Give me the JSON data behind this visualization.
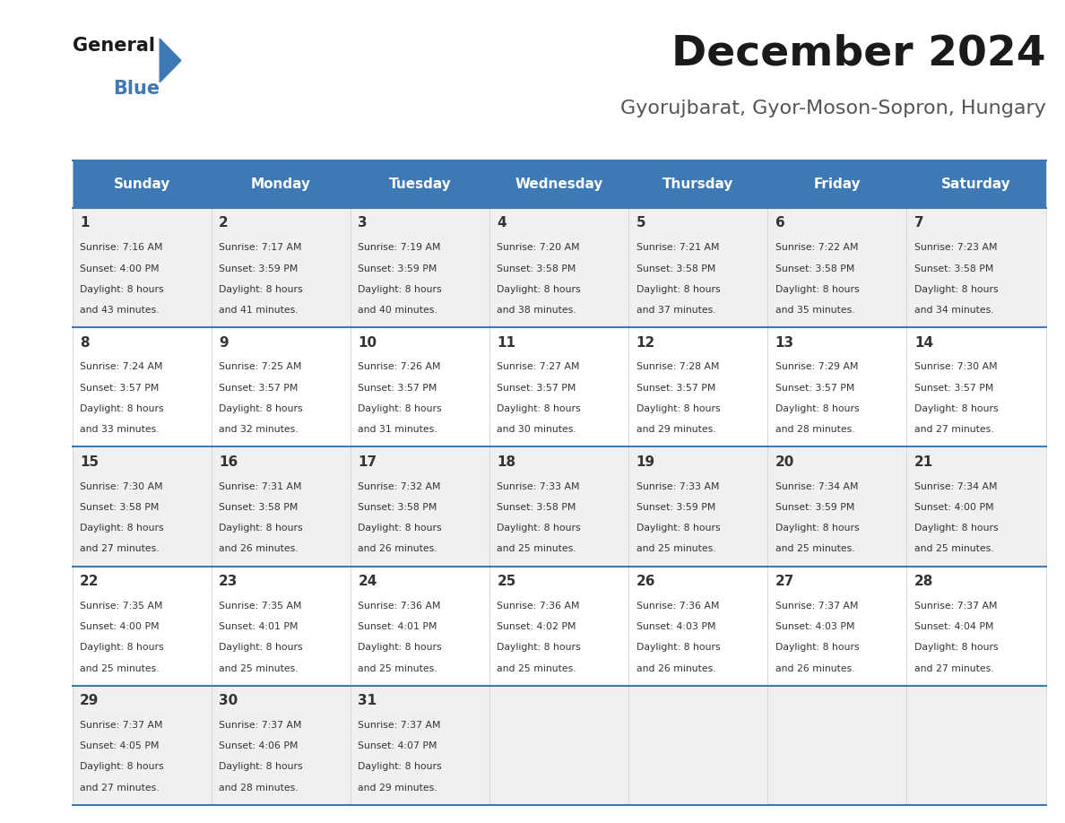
{
  "title": "December 2024",
  "subtitle": "Gyorujbarat, Gyor-Moson-Sopron, Hungary",
  "header_color": "#3d7ab5",
  "header_text_color": "#ffffff",
  "day_names": [
    "Sunday",
    "Monday",
    "Tuesday",
    "Wednesday",
    "Thursday",
    "Friday",
    "Saturday"
  ],
  "bg_color": "#ffffff",
  "cell_bg_even": "#f0f0f0",
  "cell_bg_odd": "#ffffff",
  "row_line_color": "#3d7ab5",
  "days": [
    {
      "day": 1,
      "col": 0,
      "row": 0,
      "sunrise": "7:16 AM",
      "sunset": "4:00 PM",
      "daylight": "8 hours and 43 minutes."
    },
    {
      "day": 2,
      "col": 1,
      "row": 0,
      "sunrise": "7:17 AM",
      "sunset": "3:59 PM",
      "daylight": "8 hours and 41 minutes."
    },
    {
      "day": 3,
      "col": 2,
      "row": 0,
      "sunrise": "7:19 AM",
      "sunset": "3:59 PM",
      "daylight": "8 hours and 40 minutes."
    },
    {
      "day": 4,
      "col": 3,
      "row": 0,
      "sunrise": "7:20 AM",
      "sunset": "3:58 PM",
      "daylight": "8 hours and 38 minutes."
    },
    {
      "day": 5,
      "col": 4,
      "row": 0,
      "sunrise": "7:21 AM",
      "sunset": "3:58 PM",
      "daylight": "8 hours and 37 minutes."
    },
    {
      "day": 6,
      "col": 5,
      "row": 0,
      "sunrise": "7:22 AM",
      "sunset": "3:58 PM",
      "daylight": "8 hours and 35 minutes."
    },
    {
      "day": 7,
      "col": 6,
      "row": 0,
      "sunrise": "7:23 AM",
      "sunset": "3:58 PM",
      "daylight": "8 hours and 34 minutes."
    },
    {
      "day": 8,
      "col": 0,
      "row": 1,
      "sunrise": "7:24 AM",
      "sunset": "3:57 PM",
      "daylight": "8 hours and 33 minutes."
    },
    {
      "day": 9,
      "col": 1,
      "row": 1,
      "sunrise": "7:25 AM",
      "sunset": "3:57 PM",
      "daylight": "8 hours and 32 minutes."
    },
    {
      "day": 10,
      "col": 2,
      "row": 1,
      "sunrise": "7:26 AM",
      "sunset": "3:57 PM",
      "daylight": "8 hours and 31 minutes."
    },
    {
      "day": 11,
      "col": 3,
      "row": 1,
      "sunrise": "7:27 AM",
      "sunset": "3:57 PM",
      "daylight": "8 hours and 30 minutes."
    },
    {
      "day": 12,
      "col": 4,
      "row": 1,
      "sunrise": "7:28 AM",
      "sunset": "3:57 PM",
      "daylight": "8 hours and 29 minutes."
    },
    {
      "day": 13,
      "col": 5,
      "row": 1,
      "sunrise": "7:29 AM",
      "sunset": "3:57 PM",
      "daylight": "8 hours and 28 minutes."
    },
    {
      "day": 14,
      "col": 6,
      "row": 1,
      "sunrise": "7:30 AM",
      "sunset": "3:57 PM",
      "daylight": "8 hours and 27 minutes."
    },
    {
      "day": 15,
      "col": 0,
      "row": 2,
      "sunrise": "7:30 AM",
      "sunset": "3:58 PM",
      "daylight": "8 hours and 27 minutes."
    },
    {
      "day": 16,
      "col": 1,
      "row": 2,
      "sunrise": "7:31 AM",
      "sunset": "3:58 PM",
      "daylight": "8 hours and 26 minutes."
    },
    {
      "day": 17,
      "col": 2,
      "row": 2,
      "sunrise": "7:32 AM",
      "sunset": "3:58 PM",
      "daylight": "8 hours and 26 minutes."
    },
    {
      "day": 18,
      "col": 3,
      "row": 2,
      "sunrise": "7:33 AM",
      "sunset": "3:58 PM",
      "daylight": "8 hours and 25 minutes."
    },
    {
      "day": 19,
      "col": 4,
      "row": 2,
      "sunrise": "7:33 AM",
      "sunset": "3:59 PM",
      "daylight": "8 hours and 25 minutes."
    },
    {
      "day": 20,
      "col": 5,
      "row": 2,
      "sunrise": "7:34 AM",
      "sunset": "3:59 PM",
      "daylight": "8 hours and 25 minutes."
    },
    {
      "day": 21,
      "col": 6,
      "row": 2,
      "sunrise": "7:34 AM",
      "sunset": "4:00 PM",
      "daylight": "8 hours and 25 minutes."
    },
    {
      "day": 22,
      "col": 0,
      "row": 3,
      "sunrise": "7:35 AM",
      "sunset": "4:00 PM",
      "daylight": "8 hours and 25 minutes."
    },
    {
      "day": 23,
      "col": 1,
      "row": 3,
      "sunrise": "7:35 AM",
      "sunset": "4:01 PM",
      "daylight": "8 hours and 25 minutes."
    },
    {
      "day": 24,
      "col": 2,
      "row": 3,
      "sunrise": "7:36 AM",
      "sunset": "4:01 PM",
      "daylight": "8 hours and 25 minutes."
    },
    {
      "day": 25,
      "col": 3,
      "row": 3,
      "sunrise": "7:36 AM",
      "sunset": "4:02 PM",
      "daylight": "8 hours and 25 minutes."
    },
    {
      "day": 26,
      "col": 4,
      "row": 3,
      "sunrise": "7:36 AM",
      "sunset": "4:03 PM",
      "daylight": "8 hours and 26 minutes."
    },
    {
      "day": 27,
      "col": 5,
      "row": 3,
      "sunrise": "7:37 AM",
      "sunset": "4:03 PM",
      "daylight": "8 hours and 26 minutes."
    },
    {
      "day": 28,
      "col": 6,
      "row": 3,
      "sunrise": "7:37 AM",
      "sunset": "4:04 PM",
      "daylight": "8 hours and 27 minutes."
    },
    {
      "day": 29,
      "col": 0,
      "row": 4,
      "sunrise": "7:37 AM",
      "sunset": "4:05 PM",
      "daylight": "8 hours and 27 minutes."
    },
    {
      "day": 30,
      "col": 1,
      "row": 4,
      "sunrise": "7:37 AM",
      "sunset": "4:06 PM",
      "daylight": "8 hours and 28 minutes."
    },
    {
      "day": 31,
      "col": 2,
      "row": 4,
      "sunrise": "7:37 AM",
      "sunset": "4:07 PM",
      "daylight": "8 hours and 29 minutes."
    }
  ],
  "logo_color1": "#1a1a1a",
  "logo_color2": "#3d7ab5",
  "logo_triangle_color": "#3d7ab5",
  "title_color": "#1a1a1a",
  "subtitle_color": "#555555"
}
